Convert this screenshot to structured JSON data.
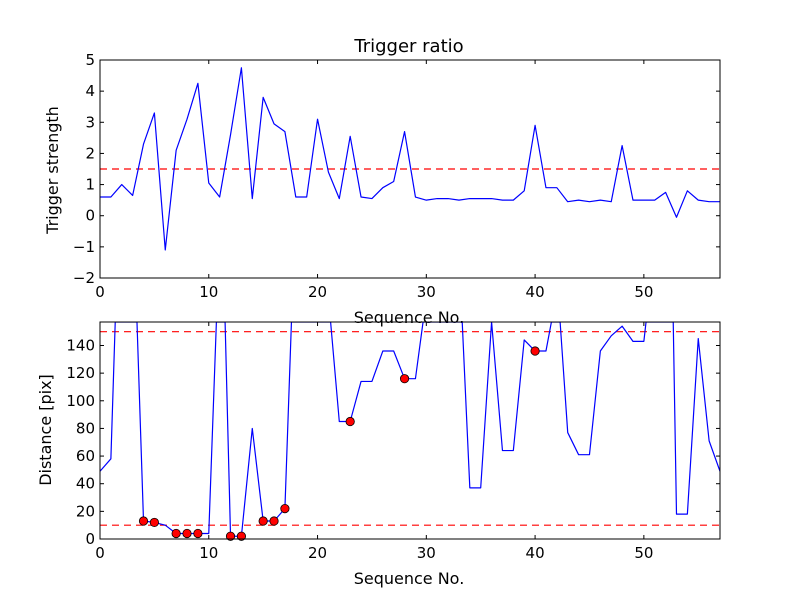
{
  "chart_data": [
    {
      "type": "line",
      "title": "Trigger ratio",
      "xlabel": "Sequence No.",
      "ylabel": "Trigger strength",
      "xlim": [
        0,
        57
      ],
      "ylim": [
        -2,
        5
      ],
      "xticks": [
        0,
        10,
        20,
        30,
        40,
        50
      ],
      "yticks": [
        -2,
        -1,
        0,
        1,
        2,
        3,
        4,
        5
      ],
      "grid": false,
      "colors": {
        "line": "#0000ff",
        "threshold": "#ff0000"
      },
      "series": [
        {
          "x": [
            0,
            1,
            2,
            3,
            4,
            5,
            6,
            7,
            8,
            9,
            10,
            11,
            12,
            13,
            14,
            15,
            16,
            17,
            18,
            19,
            20,
            21,
            22,
            23,
            24,
            25,
            26,
            27,
            28,
            29,
            30,
            31,
            32,
            33,
            34,
            35,
            36,
            37,
            38,
            39,
            40,
            41,
            42,
            43,
            44,
            45,
            46,
            47,
            48,
            49,
            50,
            51,
            52,
            53,
            54,
            55,
            56,
            57
          ],
          "values": [
            0.6,
            0.6,
            1.0,
            0.65,
            2.3,
            3.3,
            -1.1,
            2.1,
            3.1,
            4.25,
            1.05,
            0.6,
            2.6,
            4.75,
            0.55,
            3.8,
            2.95,
            2.7,
            0.6,
            0.6,
            3.1,
            1.4,
            0.55,
            2.55,
            0.6,
            0.55,
            0.9,
            1.1,
            2.7,
            0.6,
            0.5,
            0.55,
            0.55,
            0.5,
            0.55,
            0.55,
            0.55,
            0.5,
            0.5,
            0.8,
            2.9,
            0.9,
            0.9,
            0.45,
            0.5,
            0.45,
            0.5,
            0.45,
            2.25,
            0.5,
            0.5,
            0.5,
            0.75,
            -0.05,
            0.8,
            0.5,
            0.45,
            0.45
          ]
        }
      ],
      "thresholds": [
        1.5
      ]
    },
    {
      "type": "line",
      "title": "",
      "xlabel": "Sequence No.",
      "ylabel": "Distance [pix]",
      "xlim": [
        0,
        57
      ],
      "ylim": [
        0,
        157
      ],
      "xticks": [
        0,
        10,
        20,
        30,
        40,
        50
      ],
      "yticks": [
        0,
        20,
        40,
        60,
        80,
        100,
        120,
        140
      ],
      "grid": false,
      "colors": {
        "line": "#0000ff",
        "threshold": "#ff0000",
        "marker": "#ff0000"
      },
      "series": [
        {
          "x": [
            0,
            1,
            1.4,
            3.4,
            4,
            5,
            6,
            7,
            8,
            9,
            10,
            10.7,
            11.5,
            12,
            13,
            14,
            15,
            16,
            17,
            17.6,
            21.2,
            22,
            23,
            24,
            25,
            26,
            27,
            28,
            29,
            29.7,
            33.3,
            34,
            35,
            36,
            37,
            38,
            39,
            40,
            41,
            41.5,
            42.3,
            43,
            44,
            45,
            46,
            47,
            48,
            49,
            50,
            50.2,
            52.7,
            53,
            54,
            55,
            56,
            57
          ],
          "values": [
            49,
            58,
            157,
            157,
            13,
            12,
            10,
            4,
            4,
            4,
            4,
            157,
            157,
            2,
            2,
            80,
            13,
            13,
            22,
            157,
            157,
            85,
            85,
            114,
            114,
            136,
            136,
            116,
            116,
            157,
            157,
            37,
            37,
            157,
            64,
            64,
            144,
            136,
            136,
            157,
            157,
            77,
            61,
            61,
            136,
            147,
            154,
            143,
            143,
            157,
            157,
            18,
            18,
            145,
            71,
            49
          ]
        }
      ],
      "markers": {
        "x": [
          4,
          5,
          7,
          8,
          9,
          12,
          13,
          15,
          16,
          17,
          23,
          28,
          40
        ],
        "values": [
          13,
          12,
          4,
          4,
          4,
          2,
          2,
          13,
          13,
          22,
          85,
          116,
          136
        ]
      },
      "thresholds": [
        10,
        150
      ]
    }
  ]
}
